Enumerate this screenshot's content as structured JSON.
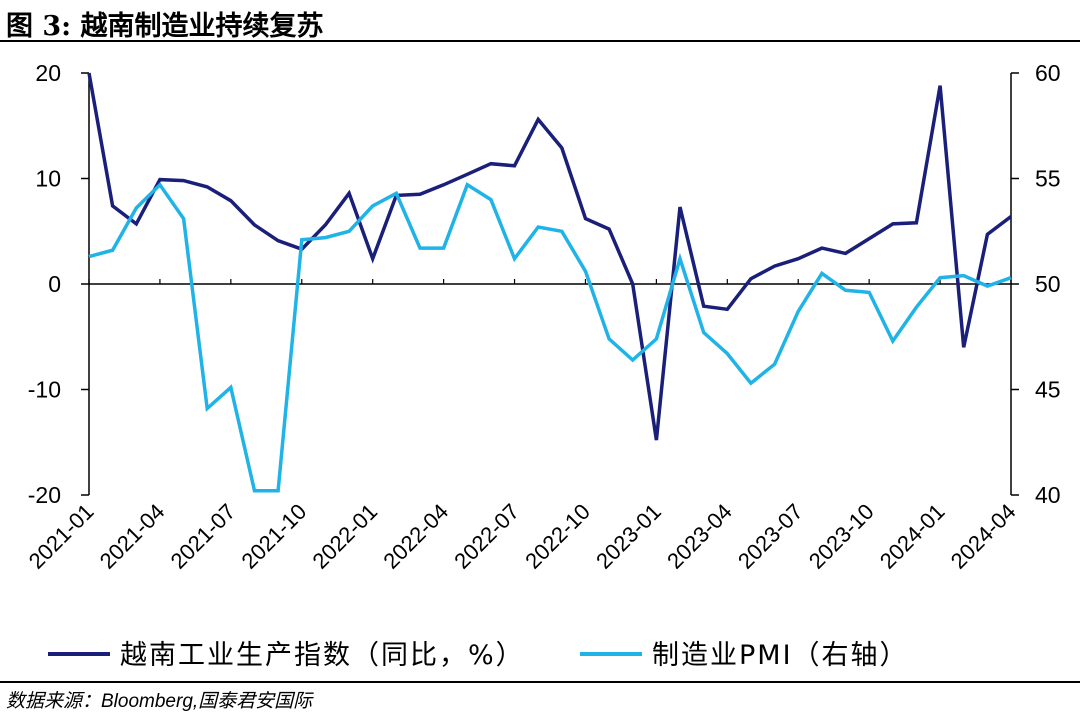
{
  "figure": {
    "title": "图 3:  越南制造业持续复苏",
    "source": "数据来源：Bloomberg,国泰君安国际"
  },
  "chart_data": {
    "type": "line",
    "x": [
      "2021-01",
      "2021-02",
      "2021-03",
      "2021-04",
      "2021-05",
      "2021-06",
      "2021-07",
      "2021-08",
      "2021-09",
      "2021-10",
      "2021-11",
      "2021-12",
      "2022-01",
      "2022-02",
      "2022-03",
      "2022-04",
      "2022-05",
      "2022-06",
      "2022-07",
      "2022-08",
      "2022-09",
      "2022-10",
      "2022-11",
      "2022-12",
      "2023-01",
      "2023-02",
      "2023-03",
      "2023-04",
      "2023-05",
      "2023-06",
      "2023-07",
      "2023-08",
      "2023-09",
      "2023-10",
      "2023-11",
      "2023-12",
      "2024-01",
      "2024-02",
      "2024-03",
      "2024-04"
    ],
    "x_tick_labels": [
      "2021-01",
      "2021-04",
      "2021-07",
      "2021-10",
      "2022-01",
      "2022-04",
      "2022-07",
      "2022-10",
      "2023-01",
      "2023-04",
      "2023-07",
      "2023-10",
      "2024-01",
      "2024-04"
    ],
    "y_left": {
      "range": [
        -20,
        20
      ],
      "ticks": [
        -20,
        -10,
        0,
        10,
        20
      ]
    },
    "y_right": {
      "range": [
        40,
        60
      ],
      "ticks": [
        40,
        45,
        50,
        55,
        60
      ]
    },
    "legend_position": "bottom",
    "series": [
      {
        "name": "越南工业生产指数（同比，%）",
        "axis": "left",
        "color": "#1a1f7a",
        "values": [
          20.0,
          7.4,
          5.7,
          9.9,
          9.8,
          9.2,
          7.9,
          5.6,
          4.1,
          3.3,
          5.6,
          8.6,
          2.4,
          8.4,
          8.5,
          9.4,
          10.4,
          11.4,
          11.2,
          15.6,
          12.9,
          6.2,
          5.2,
          0.0,
          -14.8,
          7.3,
          -2.1,
          -2.4,
          0.5,
          1.7,
          2.4,
          3.4,
          2.9,
          4.3,
          5.7,
          5.8,
          18.8,
          -6.0,
          4.7,
          6.4
        ]
      },
      {
        "name": "制造业PMI（右轴）",
        "axis": "right",
        "color": "#1fb3e8",
        "values": [
          51.3,
          51.6,
          53.6,
          54.7,
          53.1,
          44.1,
          45.1,
          40.2,
          40.2,
          52.1,
          52.2,
          52.5,
          53.7,
          54.3,
          51.7,
          51.7,
          54.7,
          54.0,
          51.2,
          52.7,
          52.5,
          50.6,
          47.4,
          46.4,
          47.4,
          51.2,
          47.7,
          46.7,
          45.3,
          46.2,
          48.7,
          50.5,
          49.7,
          49.6,
          47.3,
          48.9,
          50.3,
          50.4,
          49.9,
          50.3
        ]
      }
    ]
  }
}
